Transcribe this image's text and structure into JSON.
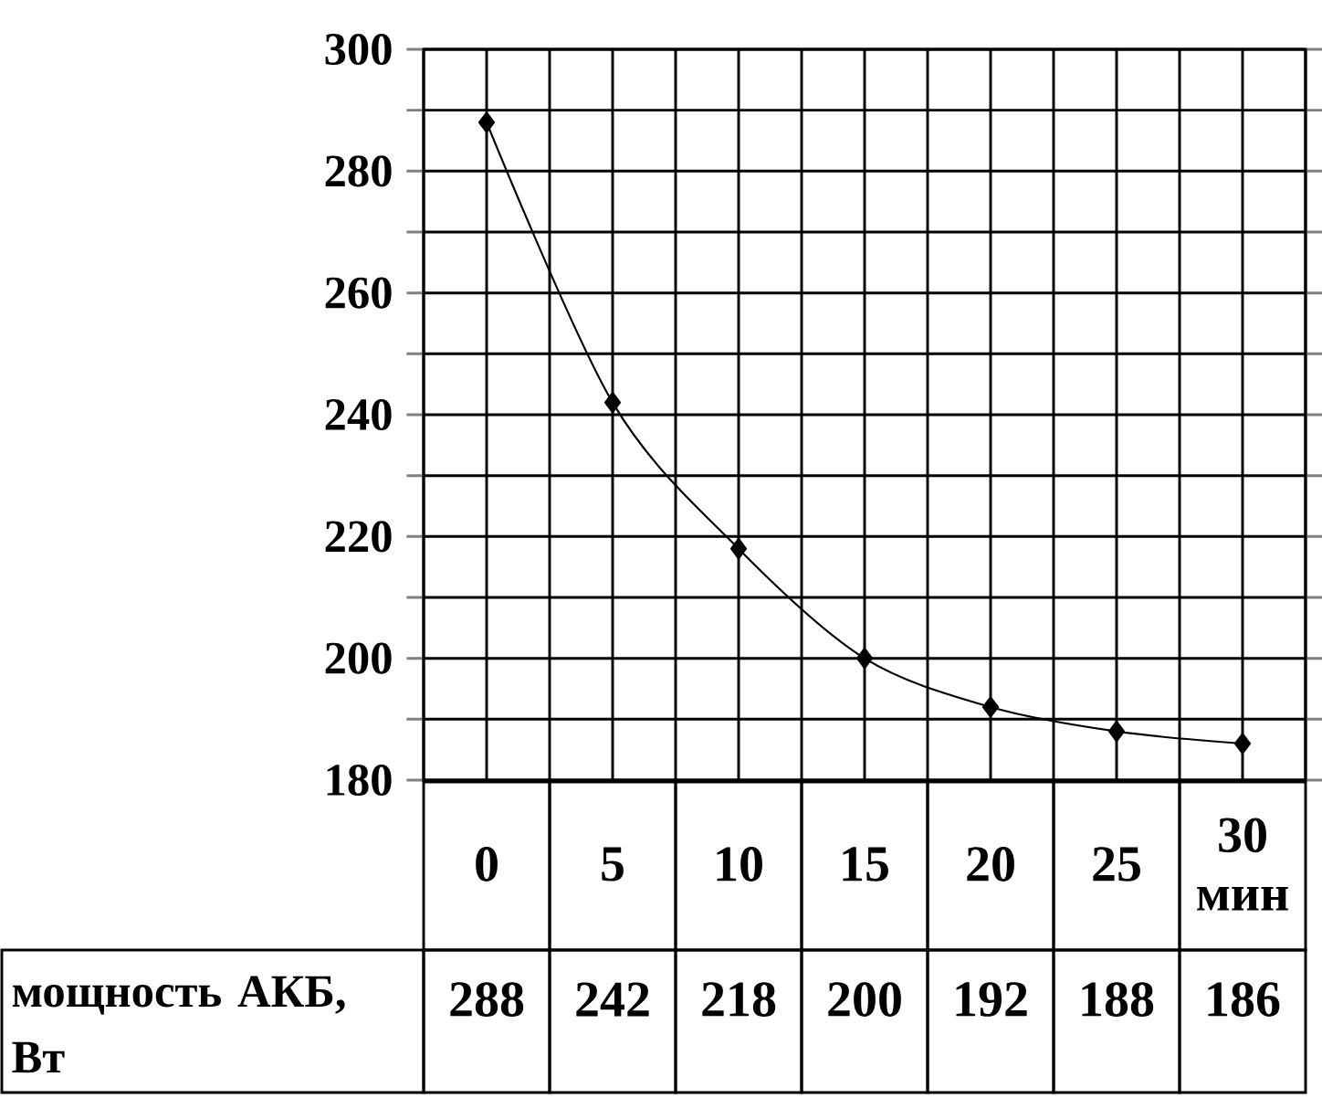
{
  "chart_data": {
    "type": "line",
    "categories": [
      "0",
      "5",
      "10",
      "15",
      "20",
      "25",
      "30 мин"
    ],
    "series": [
      {
        "name": "мощность АКБ, Вт",
        "color": "#000000",
        "values": [
          288,
          242,
          218,
          200,
          192,
          188,
          186
        ]
      }
    ],
    "ylim": [
      180,
      300
    ],
    "yticks": [
      180,
      {
        "value": 190,
        "label": null
      },
      200,
      {
        "value": 210,
        "label": null
      },
      220,
      {
        "value": 230,
        "label": null
      },
      240,
      {
        "value": 250,
        "label": null
      },
      260,
      {
        "value": 270,
        "label": null
      },
      280,
      {
        "value": 290,
        "label": null
      },
      300
    ],
    "grid": true,
    "marker": "diamond",
    "line_style": "solid",
    "data_labels": true
  }
}
